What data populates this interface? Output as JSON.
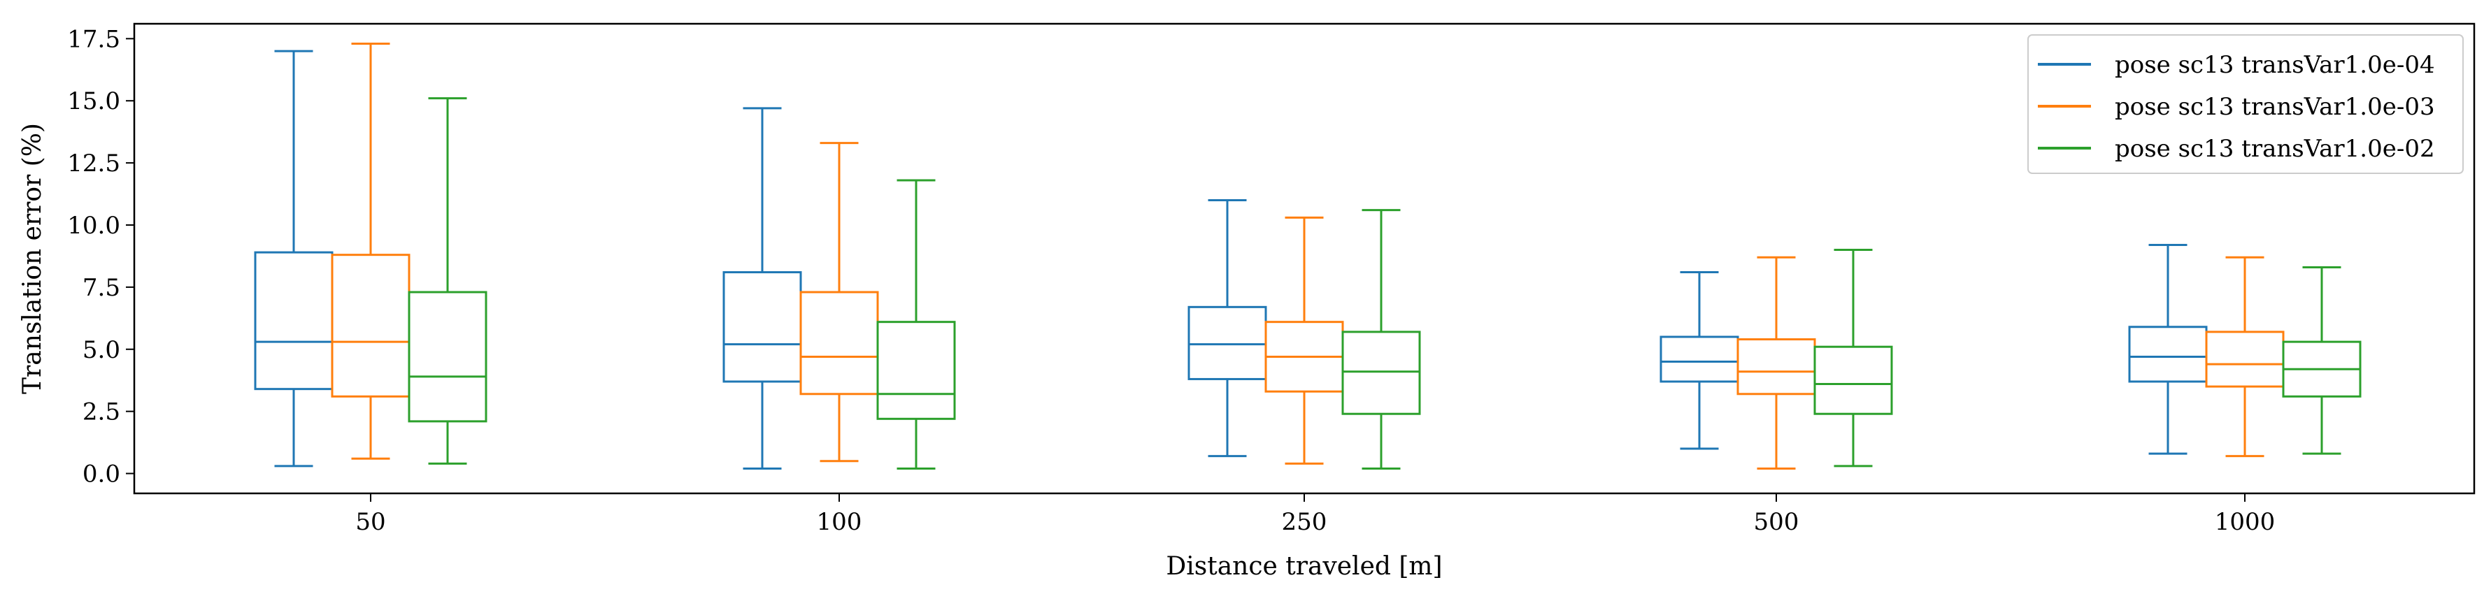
{
  "chart_data": {
    "type": "box",
    "title": "",
    "xlabel": "Distance traveled [m]",
    "ylabel": "Translation error (%)",
    "categories": [
      "50",
      "100",
      "250",
      "500",
      "1000"
    ],
    "ylim": [
      -0.8,
      18.1
    ],
    "yticks": [
      "0.0",
      "2.5",
      "5.0",
      "7.5",
      "10.0",
      "12.5",
      "15.0",
      "17.5"
    ],
    "ytick_values": [
      0,
      2.5,
      5,
      7.5,
      10,
      12.5,
      15,
      17.5
    ],
    "grid": false,
    "legend_position": "top-right",
    "series": [
      {
        "name": "pose sc13 transVar1.0e-04",
        "color": "#1f77b4",
        "boxes": [
          {
            "whislo": 0.3,
            "q1": 3.4,
            "med": 5.3,
            "q3": 8.9,
            "whishi": 17.0
          },
          {
            "whislo": 0.2,
            "q1": 3.7,
            "med": 5.2,
            "q3": 8.1,
            "whishi": 14.7
          },
          {
            "whislo": 0.7,
            "q1": 3.8,
            "med": 5.2,
            "q3": 6.7,
            "whishi": 11.0
          },
          {
            "whislo": 1.0,
            "q1": 3.7,
            "med": 4.5,
            "q3": 5.5,
            "whishi": 8.1
          },
          {
            "whislo": 0.8,
            "q1": 3.7,
            "med": 4.7,
            "q3": 5.9,
            "whishi": 9.2
          }
        ]
      },
      {
        "name": "pose sc13 transVar1.0e-03",
        "color": "#ff7f0e",
        "boxes": [
          {
            "whislo": 0.6,
            "q1": 3.1,
            "med": 5.3,
            "q3": 8.8,
            "whishi": 17.3
          },
          {
            "whislo": 0.5,
            "q1": 3.2,
            "med": 4.7,
            "q3": 7.3,
            "whishi": 13.3
          },
          {
            "whislo": 0.4,
            "q1": 3.3,
            "med": 4.7,
            "q3": 6.1,
            "whishi": 10.3
          },
          {
            "whislo": 0.2,
            "q1": 3.2,
            "med": 4.1,
            "q3": 5.4,
            "whishi": 8.7
          },
          {
            "whislo": 0.7,
            "q1": 3.5,
            "med": 4.4,
            "q3": 5.7,
            "whishi": 8.7
          }
        ]
      },
      {
        "name": "pose sc13 transVar1.0e-02",
        "color": "#2ca02c",
        "boxes": [
          {
            "whislo": 0.4,
            "q1": 2.1,
            "med": 3.9,
            "q3": 7.3,
            "whishi": 15.1
          },
          {
            "whislo": 0.2,
            "q1": 2.2,
            "med": 3.2,
            "q3": 6.1,
            "whishi": 11.8
          },
          {
            "whislo": 0.2,
            "q1": 2.4,
            "med": 4.1,
            "q3": 5.7,
            "whishi": 10.6
          },
          {
            "whislo": 0.3,
            "q1": 2.4,
            "med": 3.6,
            "q3": 5.1,
            "whishi": 9.0
          },
          {
            "whislo": 0.8,
            "q1": 3.1,
            "med": 4.2,
            "q3": 5.3,
            "whishi": 8.3
          }
        ]
      }
    ]
  }
}
